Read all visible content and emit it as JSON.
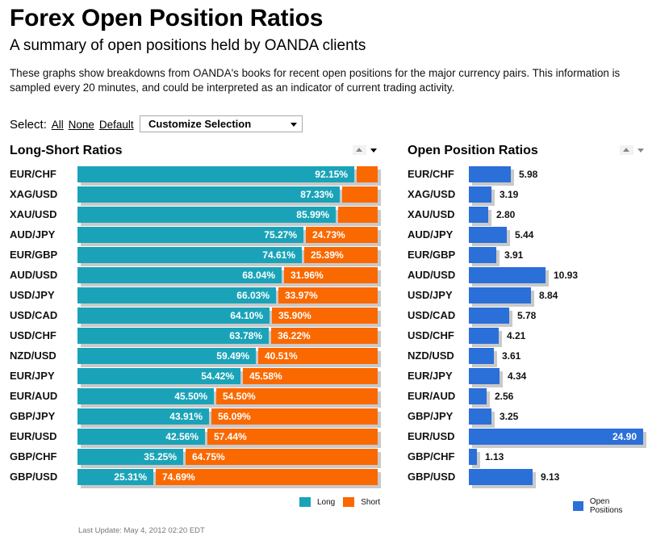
{
  "header": {
    "title": "Forex Open Position Ratios",
    "subtitle": "A summary of open positions held by OANDA clients",
    "description": "These graphs show breakdowns from OANDA's books for recent open positions for the major currency pairs. This information is sampled every 20 minutes, and could be interpreted as an indicator of current trading activity."
  },
  "select": {
    "label": "Select:",
    "all": "All",
    "none": "None",
    "default": "Default",
    "dropdown": "Customize Selection"
  },
  "footer": {
    "last_update": "Last Update: May 4, 2012 02:20 EDT"
  },
  "colors": {
    "long": "#1aa3b8",
    "short": "#fa6800",
    "open_positions": "#2b6fd9"
  },
  "chart_data": [
    {
      "type": "bar",
      "title": "Long-Short Ratios",
      "orientation": "horizontal",
      "stacked": true,
      "categories": [
        "EUR/CHF",
        "XAG/USD",
        "XAU/USD",
        "AUD/JPY",
        "EUR/GBP",
        "AUD/USD",
        "USD/JPY",
        "USD/CAD",
        "USD/CHF",
        "NZD/USD",
        "EUR/JPY",
        "EUR/AUD",
        "GBP/JPY",
        "EUR/USD",
        "GBP/CHF",
        "GBP/USD"
      ],
      "series": [
        {
          "name": "Long",
          "values": [
            92.15,
            87.33,
            85.99,
            75.27,
            74.61,
            68.04,
            66.03,
            64.1,
            63.78,
            59.49,
            54.42,
            45.5,
            43.91,
            42.56,
            35.25,
            25.31
          ],
          "labels": [
            "92.15%",
            "87.33%",
            "85.99%",
            "75.27%",
            "74.61%",
            "68.04%",
            "66.03%",
            "64.10%",
            "63.78%",
            "59.49%",
            "54.42%",
            "45.50%",
            "43.91%",
            "42.56%",
            "35.25%",
            "25.31%"
          ]
        },
        {
          "name": "Short",
          "values": [
            7.85,
            12.67,
            14.01,
            24.73,
            25.39,
            31.96,
            33.97,
            35.9,
            36.22,
            40.51,
            45.58,
            54.5,
            56.09,
            57.44,
            64.75,
            74.69
          ],
          "labels": [
            "",
            "",
            "",
            "24.73%",
            "25.39%",
            "31.96%",
            "33.97%",
            "35.90%",
            "36.22%",
            "40.51%",
            "45.58%",
            "54.50%",
            "56.09%",
            "57.44%",
            "64.75%",
            "74.69%"
          ]
        }
      ],
      "xlim": [
        0,
        100
      ],
      "legend": "bottom-right"
    },
    {
      "type": "bar",
      "title": "Open Position Ratios",
      "orientation": "horizontal",
      "categories": [
        "EUR/CHF",
        "XAG/USD",
        "XAU/USD",
        "AUD/JPY",
        "EUR/GBP",
        "AUD/USD",
        "USD/JPY",
        "USD/CAD",
        "USD/CHF",
        "NZD/USD",
        "EUR/JPY",
        "EUR/AUD",
        "GBP/JPY",
        "EUR/USD",
        "GBP/CHF",
        "GBP/USD"
      ],
      "series": [
        {
          "name": "Open Positions",
          "values": [
            5.98,
            3.19,
            2.8,
            5.44,
            3.91,
            10.93,
            8.84,
            5.78,
            4.21,
            3.61,
            4.34,
            2.56,
            3.25,
            24.9,
            1.13,
            9.13
          ],
          "labels": [
            "5.98",
            "3.19",
            "2.80",
            "5.44",
            "3.91",
            "10.93",
            "8.84",
            "5.78",
            "4.21",
            "3.61",
            "4.34",
            "2.56",
            "3.25",
            "24.90",
            "1.13",
            "9.13"
          ]
        }
      ],
      "xlim": [
        0,
        24.9
      ],
      "legend": "bottom-right"
    }
  ]
}
